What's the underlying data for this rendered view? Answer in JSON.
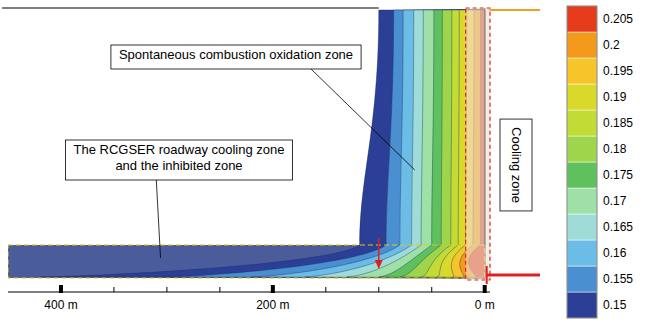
{
  "chart_data": {
    "type": "contour",
    "xlim": [
      450,
      -5
    ],
    "xticks": [
      {
        "value": 400,
        "label": "400 m"
      },
      {
        "value": 200,
        "label": "200 m"
      },
      {
        "value": 0,
        "label": "0 m"
      }
    ],
    "minor_xticks": [
      350,
      300,
      250,
      150,
      100,
      50
    ],
    "colorbar": {
      "range": [
        0.1475,
        0.2075
      ],
      "ticks": [
        0.15,
        0.155,
        0.16,
        0.165,
        0.17,
        0.175,
        0.18,
        0.185,
        0.19,
        0.195,
        0.2,
        0.205
      ],
      "colors": [
        "#2b3f96",
        "#4a8fd0",
        "#6cbde6",
        "#9fdcd8",
        "#9fe0a6",
        "#5fc15e",
        "#9fd54a",
        "#c3dc35",
        "#d9d92c",
        "#f6c52a",
        "#f39a1c",
        "#e63c1c"
      ]
    },
    "contours": {
      "x_top": [
        100,
        86,
        77,
        67,
        58,
        48,
        40,
        31,
        24,
        17,
        10,
        4
      ],
      "x_bottom": [
        118,
        93,
        80,
        69,
        60,
        50,
        41,
        32,
        25,
        18,
        11,
        4
      ],
      "x_strip": [
        420,
        300,
        220,
        170,
        130,
        100,
        80,
        60,
        45,
        30,
        20,
        8
      ]
    },
    "roadway": {
      "x": [
        450,
        0
      ]
    },
    "cooling_zone": {
      "label": "Cooling zone",
      "x": [
        18,
        -5
      ]
    },
    "arrow_x": 100,
    "annotations": [
      {
        "lines": [
          "Spontaneous combustion oxidation zone"
        ],
        "target_x": 66
      },
      {
        "lines": [
          "The RCGSER roadway cooling zone",
          "and the inhibited zone"
        ],
        "target_x": 306
      }
    ]
  }
}
